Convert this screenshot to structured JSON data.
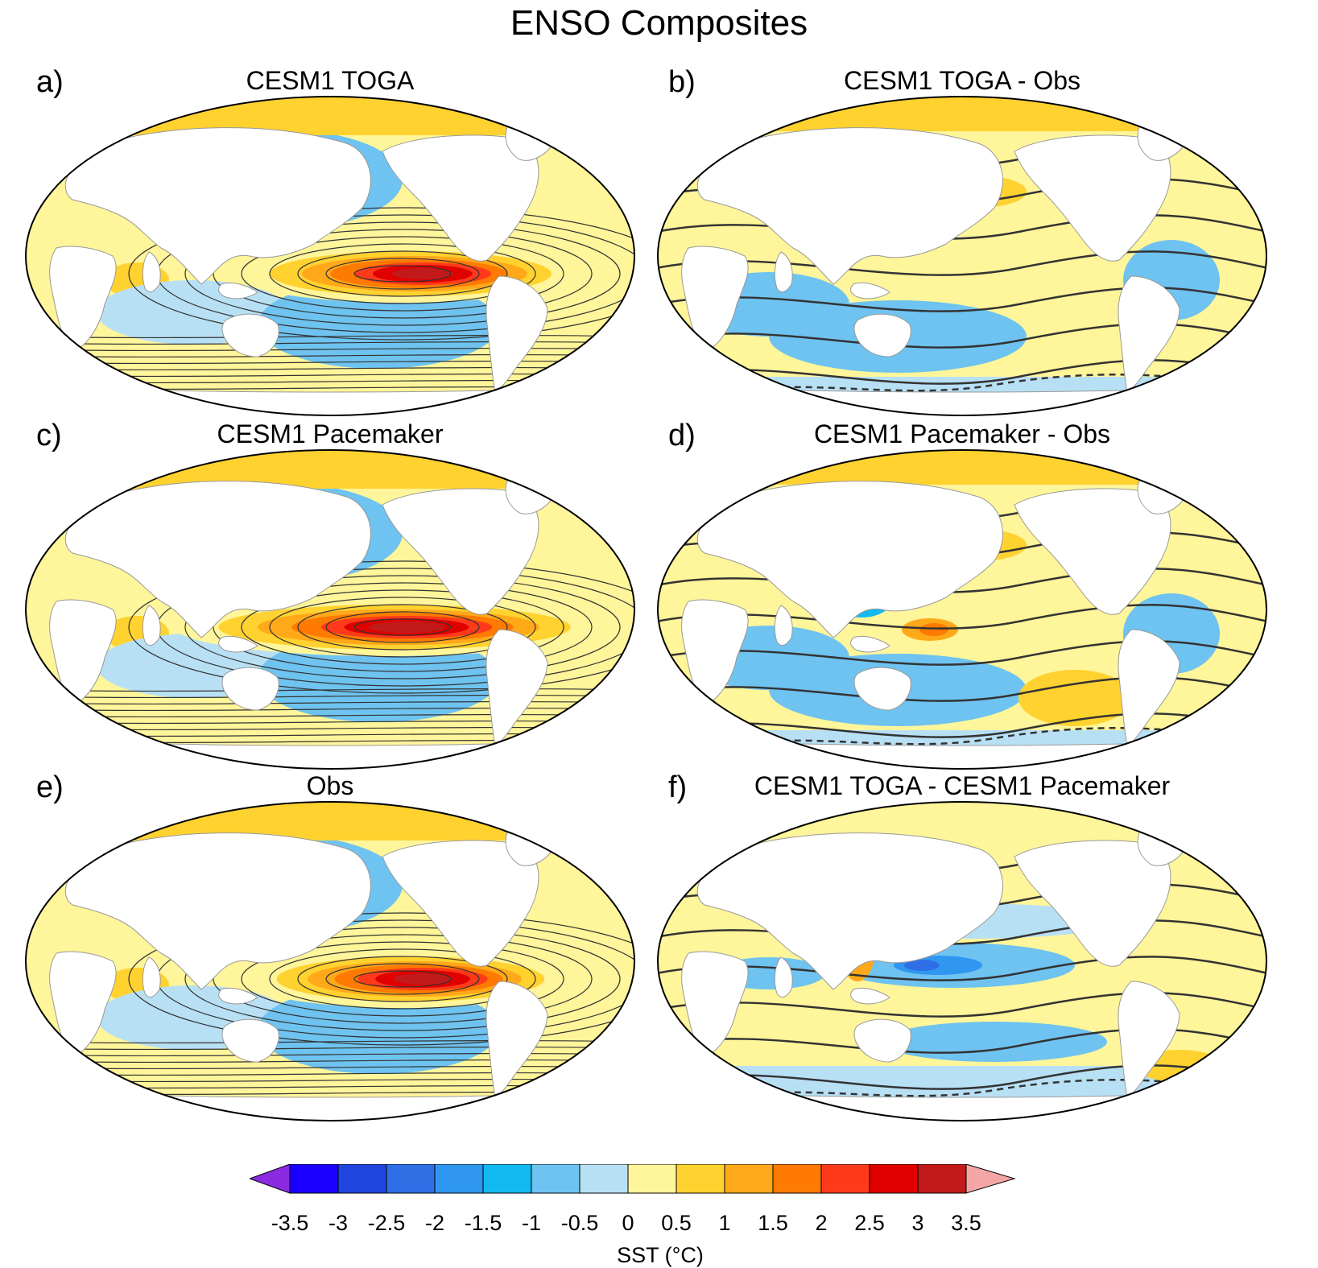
{
  "figure_title": "ENSO Composites",
  "panels": [
    {
      "letter": "a)",
      "title": "CESM1 TOGA",
      "pattern": "el-nino-toga"
    },
    {
      "letter": "b)",
      "title": "CESM1 TOGA - Obs",
      "pattern": "difference"
    },
    {
      "letter": "c)",
      "title": "CESM1 Pacemaker",
      "pattern": "el-nino-pacemaker"
    },
    {
      "letter": "d)",
      "title": "CESM1 Pacemaker - Obs",
      "pattern": "difference"
    },
    {
      "letter": "e)",
      "title": "Obs",
      "pattern": "el-nino-obs"
    },
    {
      "letter": "f)",
      "title": "CESM1 TOGA - CESM1 Pacemaker",
      "pattern": "toga-minus-pacemaker"
    }
  ],
  "colorbar": {
    "title": "SST (°C)",
    "levels": [
      "-3.5",
      "-3",
      "-2.5",
      "-2",
      "-1.5",
      "-1",
      "-0.5",
      "0",
      "0.5",
      "1",
      "1.5",
      "2",
      "2.5",
      "3",
      "3.5"
    ],
    "colors": [
      "#1a00ff",
      "#2146e0",
      "#2f6fe6",
      "#2f97f0",
      "#13b9f1",
      "#6ec3f0",
      "#b8e0f5",
      "#fff59a",
      "#ffd230",
      "#ffa91a",
      "#ff7a00",
      "#ff3a1a",
      "#e00000",
      "#c21a1a"
    ],
    "under_color": "#8a2be2",
    "over_color": "#f4a6a6"
  },
  "colors": {
    "land": "#ffffff",
    "coastline": "#999999",
    "contour": "#333333",
    "border": "#000000"
  }
}
